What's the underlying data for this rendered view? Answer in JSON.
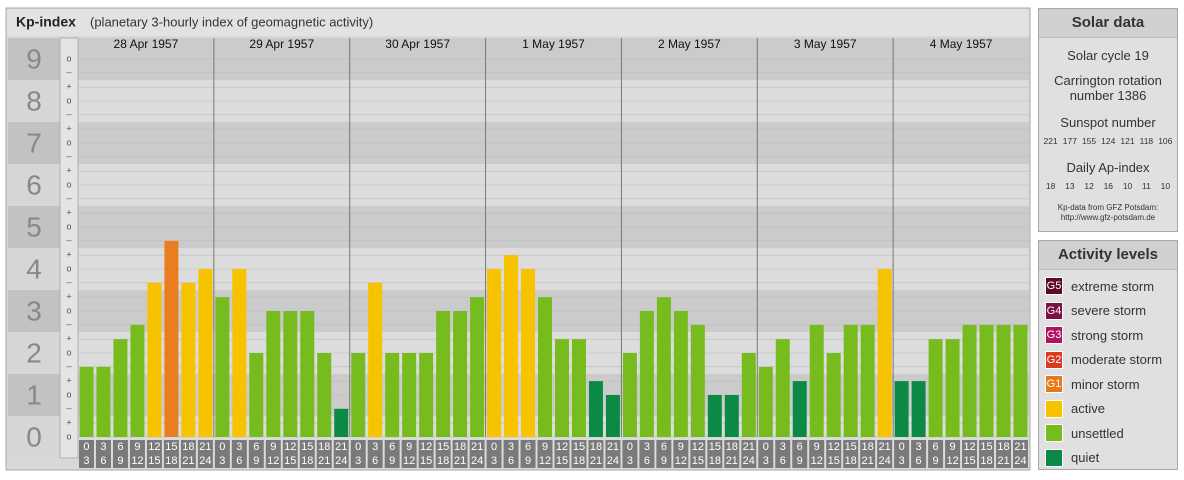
{
  "chart_data": {
    "type": "bar",
    "title": "Kp-index",
    "subtitle": "(planetary 3-hourly index of geomagnetic activity)",
    "days": [
      "28 Apr 1957",
      "29 Apr 1957",
      "30 Apr 1957",
      "1 May 1957",
      "2 May 1957",
      "3 May 1957",
      "4 May 1957"
    ],
    "slots": [
      {
        "from": "0",
        "to": "3"
      },
      {
        "from": "3",
        "to": "6"
      },
      {
        "from": "6",
        "to": "9"
      },
      {
        "from": "9",
        "to": "12"
      },
      {
        "from": "12",
        "to": "15"
      },
      {
        "from": "15",
        "to": "18"
      },
      {
        "from": "18",
        "to": "21"
      },
      {
        "from": "21",
        "to": "24"
      }
    ],
    "values": [
      1.67,
      1.67,
      2.33,
      2.67,
      3.67,
      4.67,
      3.67,
      4,
      3.33,
      4,
      2,
      3,
      3,
      3,
      2,
      0.67,
      2,
      3.67,
      2,
      2,
      2,
      3,
      3,
      3.33,
      4,
      4.33,
      4,
      3.33,
      2.33,
      2.33,
      1.33,
      1,
      2,
      3,
      3.33,
      3,
      2.67,
      1,
      1,
      2,
      1.67,
      2.33,
      1.33,
      2.67,
      2,
      2.67,
      2.67,
      4,
      1.33,
      1.33,
      2.33,
      2.33,
      2.67,
      2.67,
      2.67,
      2.67
    ],
    "colors": [
      "#77bc1f",
      "#77bc1f",
      "#77bc1f",
      "#77bc1f",
      "#f7c200",
      "#e97d1f",
      "#f7c200",
      "#f7c200",
      "#77bc1f",
      "#f7c200",
      "#77bc1f",
      "#77bc1f",
      "#77bc1f",
      "#77bc1f",
      "#77bc1f",
      "#0b8a45",
      "#77bc1f",
      "#f7c200",
      "#77bc1f",
      "#77bc1f",
      "#77bc1f",
      "#77bc1f",
      "#77bc1f",
      "#77bc1f",
      "#f7c200",
      "#f7c200",
      "#f7c200",
      "#77bc1f",
      "#77bc1f",
      "#77bc1f",
      "#0b8a45",
      "#0b8a45",
      "#77bc1f",
      "#77bc1f",
      "#77bc1f",
      "#77bc1f",
      "#77bc1f",
      "#0b8a45",
      "#0b8a45",
      "#77bc1f",
      "#77bc1f",
      "#77bc1f",
      "#0b8a45",
      "#77bc1f",
      "#77bc1f",
      "#77bc1f",
      "#77bc1f",
      "#f7c200",
      "#0b8a45",
      "#0b8a45",
      "#77bc1f",
      "#77bc1f",
      "#77bc1f",
      "#77bc1f",
      "#77bc1f",
      "#77bc1f"
    ],
    "ylim": [
      -0.5,
      9.5
    ],
    "yticks": [
      0,
      1,
      2,
      3,
      4,
      5,
      6,
      7,
      8,
      9
    ],
    "minor_ticks": [
      {
        "value": 9,
        "label": "o"
      },
      {
        "value": 8.67,
        "label": "–"
      },
      {
        "value": 8.33,
        "label": "+"
      },
      {
        "value": 8,
        "label": "o"
      },
      {
        "value": 7.67,
        "label": "–"
      },
      {
        "value": 7.33,
        "label": "+"
      },
      {
        "value": 7,
        "label": "o"
      },
      {
        "value": 6.67,
        "label": "–"
      },
      {
        "value": 6.33,
        "label": "+"
      },
      {
        "value": 6,
        "label": "o"
      },
      {
        "value": 5.67,
        "label": "–"
      },
      {
        "value": 5.33,
        "label": "+"
      },
      {
        "value": 5,
        "label": "o"
      },
      {
        "value": 4.67,
        "label": "–"
      },
      {
        "value": 4.33,
        "label": "+"
      },
      {
        "value": 4,
        "label": "o"
      },
      {
        "value": 3.67,
        "label": "–"
      },
      {
        "value": 3.33,
        "label": "+"
      },
      {
        "value": 3,
        "label": "o"
      },
      {
        "value": 2.67,
        "label": "–"
      },
      {
        "value": 2.33,
        "label": "+"
      },
      {
        "value": 2,
        "label": "o"
      },
      {
        "value": 1.67,
        "label": "–"
      },
      {
        "value": 1.33,
        "label": "+"
      },
      {
        "value": 1,
        "label": "o"
      },
      {
        "value": 0.67,
        "label": "–"
      },
      {
        "value": 0.33,
        "label": "+"
      },
      {
        "value": 0,
        "label": "o"
      }
    ]
  },
  "solar_data": {
    "title": "Solar data",
    "cycle": "Solar cycle 19",
    "carrington": [
      "Carrington rotation",
      "number 1386"
    ],
    "sunspot_label": "Sunspot number",
    "sunspot_numbers": [
      221,
      177,
      155,
      124,
      121,
      118,
      106
    ],
    "ap_label": "Daily Ap-index",
    "ap_values": [
      18,
      13,
      12,
      16,
      10,
      11,
      10
    ],
    "source": [
      "Kp-data from GFZ Potsdam:",
      "http://www.gfz-potsdam.de"
    ]
  },
  "activity_levels": {
    "title": "Activity levels",
    "levels": [
      {
        "badge": "G5",
        "name": "extreme storm",
        "color": "#5b0a2c"
      },
      {
        "badge": "G4",
        "name": "severe storm",
        "color": "#7d1044"
      },
      {
        "badge": "G3",
        "name": "strong storm",
        "color": "#b0125f"
      },
      {
        "badge": "G2",
        "name": "moderate storm",
        "color": "#d93b1f"
      },
      {
        "badge": "G1",
        "name": "minor storm",
        "color": "#e57a19"
      },
      {
        "name": "active",
        "color": "#f7c200"
      },
      {
        "name": "unsettled",
        "color": "#77bc1f"
      },
      {
        "name": "quiet",
        "color": "#0b8a45"
      }
    ]
  }
}
